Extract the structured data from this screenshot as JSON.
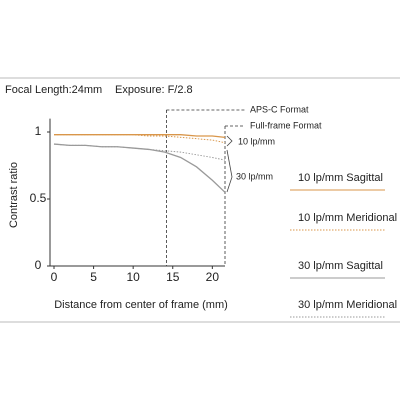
{
  "header": {
    "focal_length": "Focal Length:24mm",
    "exposure": "Exposure: F/2.8"
  },
  "chart_data": {
    "type": "line",
    "x_label": "Distance from center of frame (mm)",
    "y_label": "Contrast ratio",
    "x": [
      0,
      2,
      4,
      6,
      8,
      10,
      12,
      14,
      16,
      18,
      20,
      21.6
    ],
    "series": [
      {
        "name": "10 lp/mm Sagittal",
        "color": "#d9964a",
        "dashed": false,
        "values": [
          0.98,
          0.98,
          0.98,
          0.98,
          0.98,
          0.98,
          0.98,
          0.98,
          0.98,
          0.97,
          0.97,
          0.96
        ]
      },
      {
        "name": "10 lp/mm Meridional",
        "color": "#d9964a",
        "dashed": true,
        "values": [
          0.98,
          0.98,
          0.98,
          0.98,
          0.98,
          0.98,
          0.97,
          0.97,
          0.96,
          0.95,
          0.94,
          0.92
        ]
      },
      {
        "name": "30 lp/mm Sagittal",
        "color": "#9a9a9a",
        "dashed": false,
        "values": [
          0.91,
          0.9,
          0.9,
          0.89,
          0.89,
          0.88,
          0.87,
          0.85,
          0.81,
          0.74,
          0.64,
          0.55
        ]
      },
      {
        "name": "30 lp/mm Meridional",
        "color": "#9a9a9a",
        "dashed": true,
        "values": [
          0.91,
          0.9,
          0.9,
          0.89,
          0.89,
          0.88,
          0.87,
          0.86,
          0.85,
          0.83,
          0.81,
          0.79
        ]
      }
    ],
    "xlim": [
      0,
      21.6
    ],
    "xticks": [
      0,
      5,
      10,
      15,
      20
    ],
    "ylim": [
      0,
      1.1
    ],
    "yticks": [
      0,
      0.5,
      1
    ],
    "format_boundaries": [
      {
        "label": "APS-C Format",
        "x": 14.2
      },
      {
        "label": "Full-frame Format",
        "x": 21.6
      }
    ],
    "annotations": [
      "10 lp/mm",
      "30 lp/mm"
    ]
  }
}
